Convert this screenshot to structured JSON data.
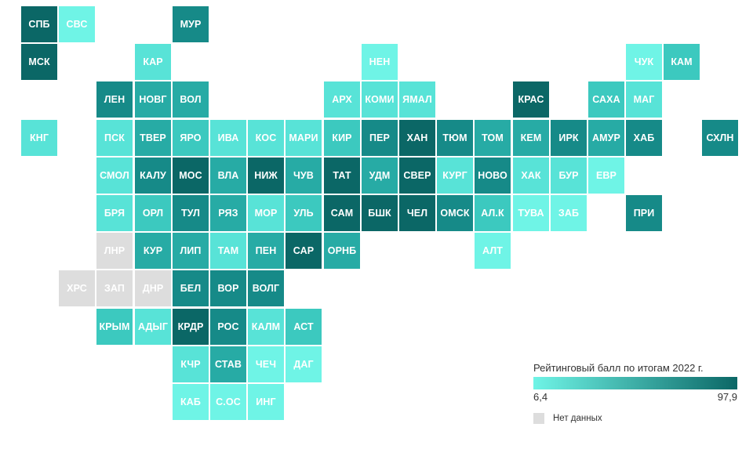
{
  "colors": {
    "scale": [
      "#6ff4e6",
      "#58e3d7",
      "#3cc9bf",
      "#27aba5",
      "#168a88",
      "#0b6766"
    ],
    "no_data": "#dddddd",
    "text_light": "#ffffff"
  },
  "legend": {
    "title": "Рейтинговый балл по итогам 2022 г.",
    "min": "6,4",
    "max": "97,9",
    "no_data_label": "Нет данных"
  },
  "regions": [
    {
      "label": "СПБ",
      "col": 0,
      "row": 0,
      "level": 5
    },
    {
      "label": "СВС",
      "col": 1,
      "row": 0,
      "level": 0
    },
    {
      "label": "МУР",
      "col": 4,
      "row": 0,
      "level": 4
    },
    {
      "label": "МСК",
      "col": 0,
      "row": 1,
      "level": 5
    },
    {
      "label": "КАР",
      "col": 3,
      "row": 1,
      "level": 1
    },
    {
      "label": "НЕН",
      "col": 9,
      "row": 1,
      "level": 0
    },
    {
      "label": "ЧУК",
      "col": 16,
      "row": 1,
      "level": 0
    },
    {
      "label": "КАМ",
      "col": 17,
      "row": 1,
      "level": 2
    },
    {
      "label": "ЛЕН",
      "col": 2,
      "row": 2,
      "level": 4
    },
    {
      "label": "НОВГ",
      "col": 3,
      "row": 2,
      "level": 3
    },
    {
      "label": "ВОЛ",
      "col": 4,
      "row": 2,
      "level": 3
    },
    {
      "label": "АРХ",
      "col": 8,
      "row": 2,
      "level": 1
    },
    {
      "label": "КОМИ",
      "col": 9,
      "row": 2,
      "level": 1
    },
    {
      "label": "ЯМАЛ",
      "col": 10,
      "row": 2,
      "level": 1
    },
    {
      "label": "КРАС",
      "col": 13,
      "row": 2,
      "level": 5
    },
    {
      "label": "САХА",
      "col": 15,
      "row": 2,
      "level": 2
    },
    {
      "label": "МАГ",
      "col": 16,
      "row": 2,
      "level": 1
    },
    {
      "label": "КНГ",
      "col": 0,
      "row": 3,
      "level": 1
    },
    {
      "label": "ПСК",
      "col": 2,
      "row": 3,
      "level": 1
    },
    {
      "label": "ТВЕР",
      "col": 3,
      "row": 3,
      "level": 3
    },
    {
      "label": "ЯРО",
      "col": 4,
      "row": 3,
      "level": 2
    },
    {
      "label": "ИВА",
      "col": 5,
      "row": 3,
      "level": 1
    },
    {
      "label": "КОС",
      "col": 6,
      "row": 3,
      "level": 1
    },
    {
      "label": "МАРИ",
      "col": 7,
      "row": 3,
      "level": 1
    },
    {
      "label": "КИР",
      "col": 8,
      "row": 3,
      "level": 2
    },
    {
      "label": "ПЕР",
      "col": 9,
      "row": 3,
      "level": 4
    },
    {
      "label": "ХАН",
      "col": 10,
      "row": 3,
      "level": 5
    },
    {
      "label": "ТЮМ",
      "col": 11,
      "row": 3,
      "level": 4
    },
    {
      "label": "ТОМ",
      "col": 12,
      "row": 3,
      "level": 3
    },
    {
      "label": "КЕМ",
      "col": 13,
      "row": 3,
      "level": 3
    },
    {
      "label": "ИРК",
      "col": 14,
      "row": 3,
      "level": 4
    },
    {
      "label": "АМУР",
      "col": 15,
      "row": 3,
      "level": 3
    },
    {
      "label": "ХАБ",
      "col": 16,
      "row": 3,
      "level": 4
    },
    {
      "label": "СХЛН",
      "col": 18,
      "row": 3,
      "level": 4
    },
    {
      "label": "СМОЛ",
      "col": 2,
      "row": 4,
      "level": 1
    },
    {
      "label": "КАЛУ",
      "col": 3,
      "row": 4,
      "level": 4
    },
    {
      "label": "МОС",
      "col": 4,
      "row": 4,
      "level": 5
    },
    {
      "label": "ВЛА",
      "col": 5,
      "row": 4,
      "level": 3
    },
    {
      "label": "НИЖ",
      "col": 6,
      "row": 4,
      "level": 5
    },
    {
      "label": "ЧУВ",
      "col": 7,
      "row": 4,
      "level": 3
    },
    {
      "label": "ТАТ",
      "col": 8,
      "row": 4,
      "level": 5
    },
    {
      "label": "УДМ",
      "col": 9,
      "row": 4,
      "level": 3
    },
    {
      "label": "СВЕР",
      "col": 10,
      "row": 4,
      "level": 5
    },
    {
      "label": "КУРГ",
      "col": 11,
      "row": 4,
      "level": 1
    },
    {
      "label": "НОВО",
      "col": 12,
      "row": 4,
      "level": 4
    },
    {
      "label": "ХАК",
      "col": 13,
      "row": 4,
      "level": 1
    },
    {
      "label": "БУР",
      "col": 14,
      "row": 4,
      "level": 1
    },
    {
      "label": "ЕВР",
      "col": 15,
      "row": 4,
      "level": 0
    },
    {
      "label": "БРЯ",
      "col": 2,
      "row": 5,
      "level": 1
    },
    {
      "label": "ОРЛ",
      "col": 3,
      "row": 5,
      "level": 2
    },
    {
      "label": "ТУЛ",
      "col": 4,
      "row": 5,
      "level": 4
    },
    {
      "label": "РЯЗ",
      "col": 5,
      "row": 5,
      "level": 3
    },
    {
      "label": "МОР",
      "col": 6,
      "row": 5,
      "level": 1
    },
    {
      "label": "УЛЬ",
      "col": 7,
      "row": 5,
      "level": 2
    },
    {
      "label": "САМ",
      "col": 8,
      "row": 5,
      "level": 5
    },
    {
      "label": "БШК",
      "col": 9,
      "row": 5,
      "level": 5
    },
    {
      "label": "ЧЕЛ",
      "col": 10,
      "row": 5,
      "level": 5
    },
    {
      "label": "ОМСК",
      "col": 11,
      "row": 5,
      "level": 4
    },
    {
      "label": "АЛ.К",
      "col": 12,
      "row": 5,
      "level": 2
    },
    {
      "label": "ТУВА",
      "col": 13,
      "row": 5,
      "level": 0
    },
    {
      "label": "ЗАБ",
      "col": 14,
      "row": 5,
      "level": 0
    },
    {
      "label": "ПРИ",
      "col": 16,
      "row": 5,
      "level": 4
    },
    {
      "label": "ЛНР",
      "col": 2,
      "row": 6,
      "nodata": true
    },
    {
      "label": "КУР",
      "col": 3,
      "row": 6,
      "level": 3
    },
    {
      "label": "ЛИП",
      "col": 4,
      "row": 6,
      "level": 3
    },
    {
      "label": "ТАМ",
      "col": 5,
      "row": 6,
      "level": 1
    },
    {
      "label": "ПЕН",
      "col": 6,
      "row": 6,
      "level": 3
    },
    {
      "label": "САР",
      "col": 7,
      "row": 6,
      "level": 5
    },
    {
      "label": "ОРНБ",
      "col": 8,
      "row": 6,
      "level": 3
    },
    {
      "label": "АЛТ",
      "col": 12,
      "row": 6,
      "level": 0
    },
    {
      "label": "ХРС",
      "col": 1,
      "row": 7,
      "nodata": true
    },
    {
      "label": "ЗАП",
      "col": 2,
      "row": 7,
      "nodata": true
    },
    {
      "label": "ДНР",
      "col": 3,
      "row": 7,
      "nodata": true
    },
    {
      "label": "БЕЛ",
      "col": 4,
      "row": 7,
      "level": 4
    },
    {
      "label": "ВОР",
      "col": 5,
      "row": 7,
      "level": 4
    },
    {
      "label": "ВОЛГ",
      "col": 6,
      "row": 7,
      "level": 4
    },
    {
      "label": "КРЫМ",
      "col": 2,
      "row": 8,
      "level": 2
    },
    {
      "label": "АДЫГ",
      "col": 3,
      "row": 8,
      "level": 1
    },
    {
      "label": "КРДР",
      "col": 4,
      "row": 8,
      "level": 5
    },
    {
      "label": "РОС",
      "col": 5,
      "row": 8,
      "level": 4
    },
    {
      "label": "КАЛМ",
      "col": 6,
      "row": 8,
      "level": 1
    },
    {
      "label": "АСТ",
      "col": 7,
      "row": 8,
      "level": 2
    },
    {
      "label": "КЧР",
      "col": 4,
      "row": 9,
      "level": 1
    },
    {
      "label": "СТАВ",
      "col": 5,
      "row": 9,
      "level": 3
    },
    {
      "label": "ЧЕЧ",
      "col": 6,
      "row": 9,
      "level": 0
    },
    {
      "label": "ДАГ",
      "col": 7,
      "row": 9,
      "level": 0
    },
    {
      "label": "КАБ",
      "col": 4,
      "row": 10,
      "level": 0
    },
    {
      "label": "С.ОС",
      "col": 5,
      "row": 10,
      "level": 0
    },
    {
      "label": "ИНГ",
      "col": 6,
      "row": 10,
      "level": 0
    }
  ]
}
